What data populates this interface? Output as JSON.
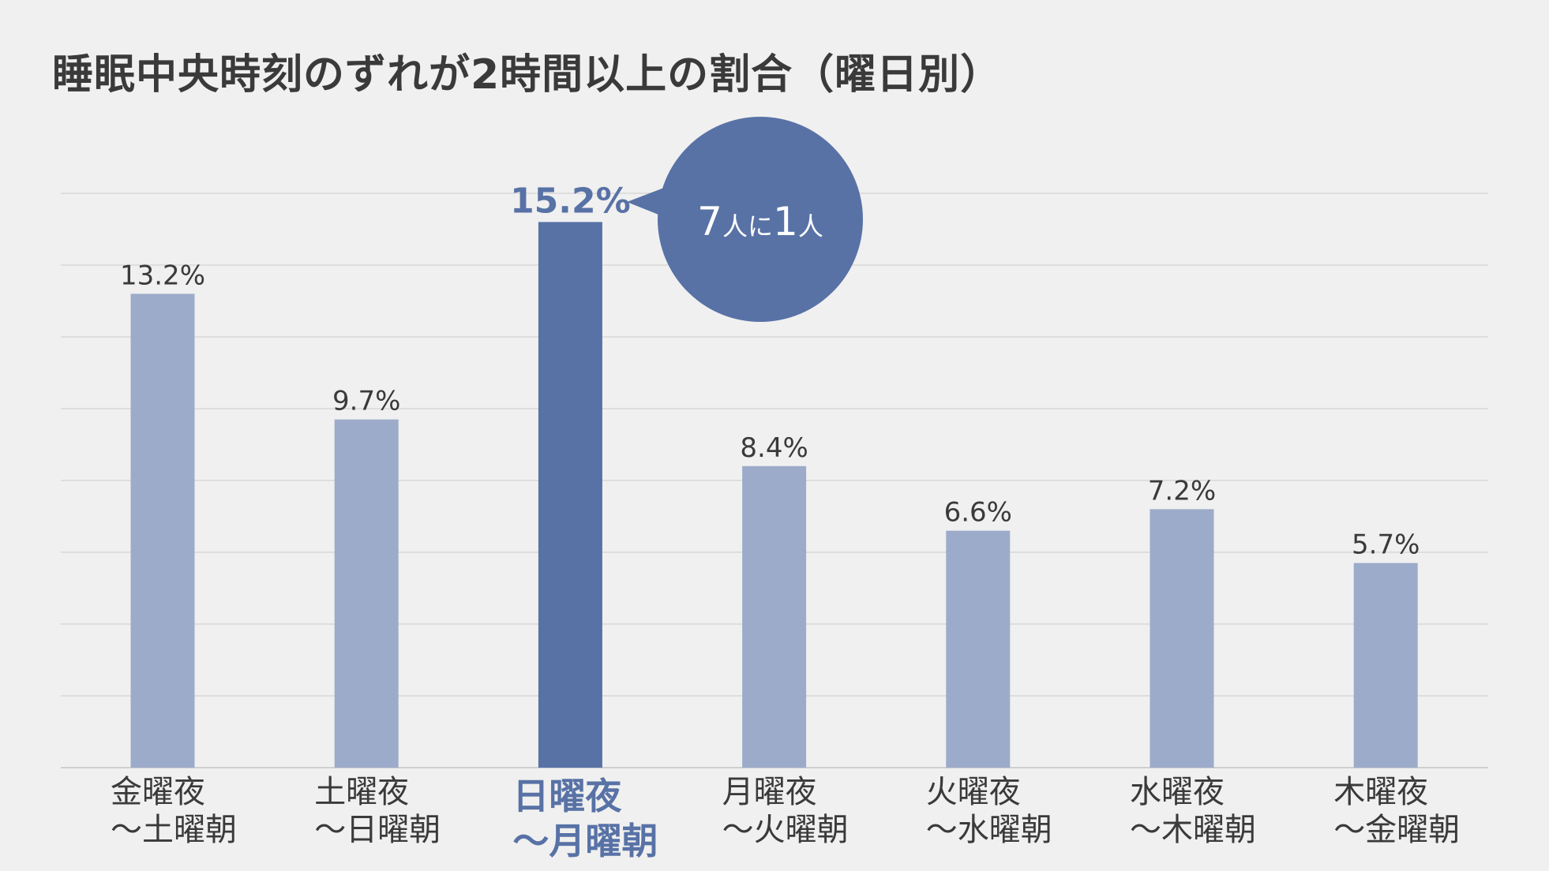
{
  "colors": {
    "bar": "#9dabca",
    "bar_highlight": "#5872a6",
    "background": "#f0f0f0",
    "text": "#3a3a3a"
  },
  "chart_data": {
    "type": "bar",
    "title": "睡眠中央時刻のずれが2時間以上の割合（曜日別）",
    "xlabel": "",
    "ylabel": "",
    "ylim": [
      0,
      16
    ],
    "grid": true,
    "categories": [
      [
        "金曜夜",
        "～土曜朝"
      ],
      [
        "土曜夜",
        "～日曜朝"
      ],
      [
        "日曜夜",
        "～月曜朝"
      ],
      [
        "月曜夜",
        "～火曜朝"
      ],
      [
        "火曜夜",
        "～水曜朝"
      ],
      [
        "水曜夜",
        "～木曜朝"
      ],
      [
        "木曜夜",
        "～金曜朝"
      ]
    ],
    "values": [
      13.2,
      9.7,
      15.2,
      8.4,
      6.6,
      7.2,
      5.7
    ],
    "value_labels": [
      "13.2%",
      "9.7%",
      "15.2%",
      "8.4%",
      "6.6%",
      "7.2%",
      "5.7%"
    ],
    "highlight_index": 2,
    "annotation": {
      "target_index": 2,
      "parts": [
        {
          "text": "7",
          "size": "large"
        },
        {
          "text": "人に",
          "size": "small"
        },
        {
          "text": "1",
          "size": "large"
        },
        {
          "text": "人",
          "size": "small"
        }
      ]
    }
  }
}
